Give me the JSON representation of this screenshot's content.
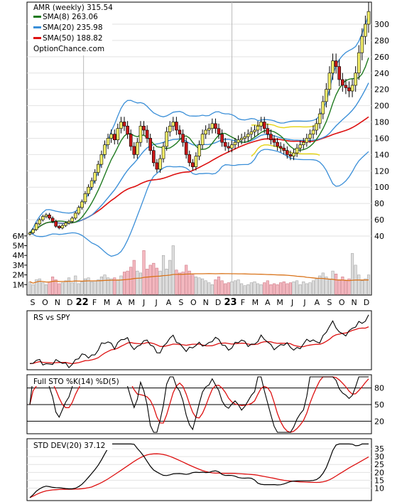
{
  "chart_data": [
    {
      "type": "candlestick",
      "title": "AMR (weekly) 315.54",
      "source_label": "OptionChance.com",
      "legend": [
        {
          "name": "SMA(8) 263.06",
          "color": "#1f7a1f"
        },
        {
          "name": "SMA(20) 235.98",
          "color": "#3b8fd8"
        },
        {
          "name": "SMA(50) 188.82",
          "color": "#dd1111"
        }
      ],
      "x_ticks": [
        "S",
        "O",
        "N",
        "D",
        "22",
        "F",
        "M",
        "A",
        "M",
        "J",
        "J",
        "A",
        "S",
        "O",
        "N",
        "D",
        "23",
        "F",
        "M",
        "A",
        "M",
        "J",
        "J",
        "A",
        "S",
        "O",
        "N",
        "D"
      ],
      "y_ticks": [
        40,
        60,
        80,
        100,
        120,
        140,
        160,
        180,
        200,
        220,
        240,
        260,
        280,
        300
      ],
      "ylim": [
        25,
        320
      ],
      "close_series": [
        44,
        48,
        55,
        60,
        64,
        66,
        62,
        58,
        52,
        50,
        53,
        56,
        58,
        62,
        68,
        75,
        82,
        92,
        100,
        108,
        118,
        128,
        140,
        152,
        160,
        165,
        158,
        172,
        180,
        175,
        165,
        150,
        140,
        155,
        175,
        170,
        160,
        145,
        130,
        122,
        135,
        150,
        168,
        175,
        180,
        170,
        165,
        155,
        140,
        130,
        125,
        138,
        152,
        165,
        170,
        172,
        178,
        172,
        165,
        155,
        150,
        148,
        152,
        155,
        158,
        160,
        162,
        165,
        168,
        170,
        175,
        180,
        172,
        165,
        158,
        155,
        150,
        148,
        145,
        140,
        138,
        142,
        148,
        152,
        155,
        160,
        165,
        170,
        178,
        190,
        205,
        220,
        240,
        255,
        248,
        232,
        225,
        222,
        218,
        225,
        240,
        265,
        285,
        300,
        315.54
      ],
      "volume_ticks": [
        "1M",
        "2M",
        "3M",
        "4M",
        "5M",
        "6M"
      ],
      "volume_ylim": [
        0,
        6.5
      ],
      "volume_millions": [
        1.3,
        1.0,
        1.5,
        1.6,
        1.2,
        1.0,
        1.3,
        1.8,
        1.5,
        1.1,
        1.2,
        1.4,
        1.7,
        1.2,
        1.9,
        1.1,
        1.3,
        1.6,
        1.7,
        1.3,
        1.4,
        1.5,
        1.8,
        2.0,
        1.7,
        1.6,
        1.7,
        1.5,
        1.9,
        2.3,
        2.4,
        2.8,
        3.5,
        2.4,
        2.2,
        4.5,
        2.6,
        3.0,
        3.2,
        2.7,
        2.4,
        4.0,
        2.6,
        3.5,
        5.0,
        2.5,
        2.2,
        2.3,
        3.0,
        2.4,
        2.0,
        1.8,
        1.7,
        1.6,
        1.4,
        1.2,
        1.0,
        1.5,
        1.8,
        1.4,
        1.1,
        1.2,
        1.3,
        1.4,
        1.5,
        1.1,
        0.9,
        1.0,
        1.2,
        1.3,
        1.1,
        1.0,
        1.2,
        1.4,
        1.0,
        1.1,
        1.0,
        1.2,
        1.3,
        1.1,
        1.2,
        1.3,
        1.4,
        1.0,
        1.3,
        1.1,
        1.2,
        1.4,
        1.6,
        1.9,
        2.2,
        1.8,
        1.5,
        2.4,
        2.1,
        1.5,
        1.8,
        1.4,
        1.6,
        4.2,
        3.0,
        2.0,
        1.4,
        1.6,
        2.0
      ]
    },
    {
      "type": "line",
      "title": "RS vs SPY"
    },
    {
      "type": "line",
      "title": "Full STO %K(14) %D(5)",
      "y_ticks": [
        20,
        50,
        80
      ],
      "ylim": [
        0,
        100
      ]
    },
    {
      "type": "line",
      "title": "STD DEV(20) 37.12",
      "y_ticks": [
        10,
        15,
        20,
        25,
        30,
        35
      ],
      "ylim": [
        3,
        40
      ]
    }
  ]
}
